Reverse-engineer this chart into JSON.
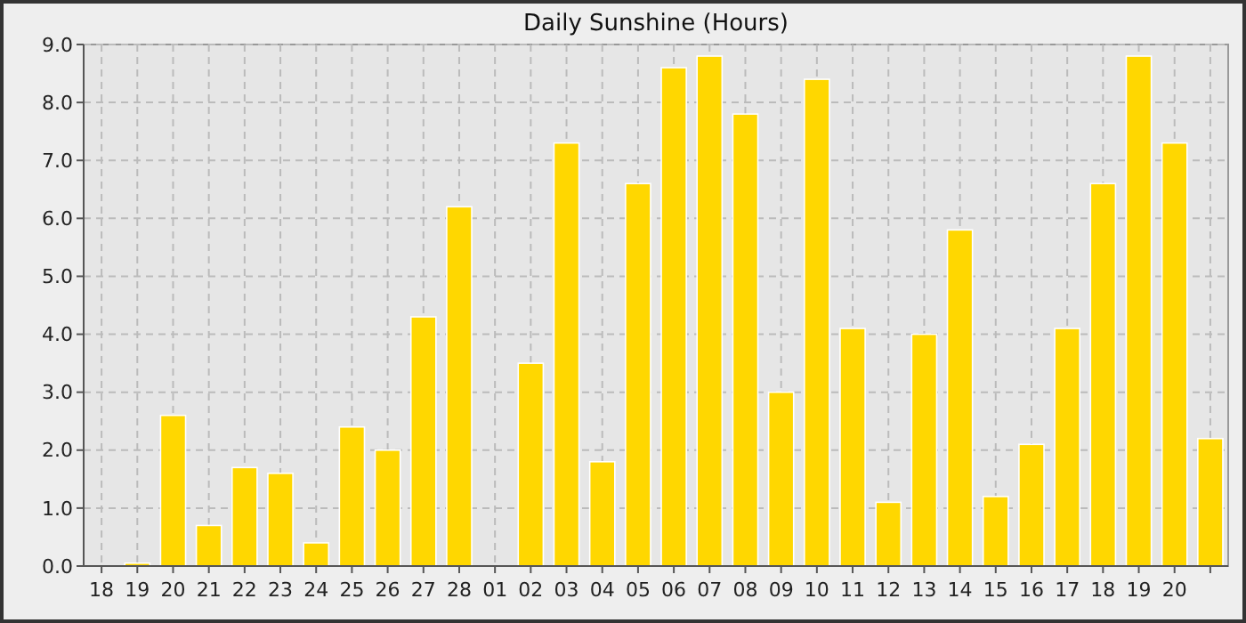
{
  "chart_data": {
    "type": "bar",
    "title": "Daily Sunshine (Hours)",
    "categories": [
      "18",
      "19",
      "20",
      "21",
      "22",
      "23",
      "24",
      "25",
      "26",
      "27",
      "28",
      "01",
      "02",
      "03",
      "04",
      "05",
      "06",
      "07",
      "08",
      "09",
      "10",
      "11",
      "12",
      "13",
      "14",
      "15",
      "16",
      "17",
      "18",
      "19",
      "20",
      null
    ],
    "values": [
      0,
      0.05,
      2.6,
      0.7,
      1.7,
      1.6,
      0.4,
      2.4,
      2.0,
      4.3,
      6.2,
      0,
      3.5,
      7.3,
      1.8,
      6.6,
      8.6,
      8.8,
      7.8,
      3.0,
      8.4,
      4.1,
      1.1,
      4.0,
      5.8,
      1.2,
      2.1,
      4.1,
      6.6,
      8.8,
      7.3,
      2.2
    ],
    "color": "#ffd700",
    "ylim": [
      0,
      9
    ],
    "yticks": [
      {
        "value": 0,
        "label": "0.0"
      },
      {
        "value": 1,
        "label": "1.0"
      },
      {
        "value": 2,
        "label": "2.0"
      },
      {
        "value": 3,
        "label": "3.0"
      },
      {
        "value": 4,
        "label": "4.0"
      },
      {
        "value": 5,
        "label": "5.0"
      },
      {
        "value": 6,
        "label": "6.0"
      },
      {
        "value": 7,
        "label": "7.0"
      },
      {
        "value": 8,
        "label": "8.0"
      },
      {
        "value": 9,
        "label": "9.0"
      }
    ],
    "grid": true
  }
}
